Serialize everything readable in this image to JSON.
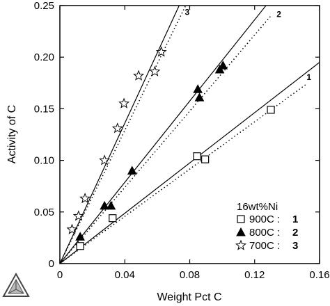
{
  "chart_data": {
    "type": "scatter",
    "xlabel": "Weight Pct C",
    "ylabel": "Activity of C",
    "xlim": [
      0,
      0.16
    ],
    "ylim": [
      0,
      0.25
    ],
    "x_ticks": [
      0,
      0.04,
      0.08,
      0.12,
      0.16
    ],
    "x_tick_labels": [
      "0",
      "0.04",
      "0.08",
      "0.12",
      "0.16"
    ],
    "y_ticks": [
      0,
      0.05,
      0.1,
      0.15,
      0.2,
      0.25
    ],
    "y_tick_labels": [
      "0",
      "0.05",
      "0.10",
      "0.15",
      "0.20",
      "0.25"
    ],
    "legend": {
      "title": "16wt%Ni",
      "placement": "bottom-right"
    },
    "series": [
      {
        "name": "900C",
        "number": "1",
        "marker": "open-square",
        "points": [
          {
            "x": 0.0125,
            "y": 0.017
          },
          {
            "x": 0.0325,
            "y": 0.044
          },
          {
            "x": 0.0845,
            "y": 0.104
          },
          {
            "x": 0.0895,
            "y": 0.101
          },
          {
            "x": 0.13,
            "y": 0.149
          }
        ],
        "solid_line": [
          [
            0,
            0
          ],
          [
            0.16,
            0.195
          ]
        ],
        "dotted_line": [
          [
            0,
            0
          ],
          [
            0.152,
            0.174
          ]
        ],
        "line_label": "1"
      },
      {
        "name": "800C",
        "number": "2",
        "marker": "filled-triangle",
        "points": [
          {
            "x": 0.0125,
            "y": 0.026
          },
          {
            "x": 0.0275,
            "y": 0.056
          },
          {
            "x": 0.0315,
            "y": 0.056
          },
          {
            "x": 0.0445,
            "y": 0.09
          },
          {
            "x": 0.085,
            "y": 0.169
          },
          {
            "x": 0.086,
            "y": 0.161
          },
          {
            "x": 0.0985,
            "y": 0.188
          },
          {
            "x": 0.1005,
            "y": 0.192
          }
        ],
        "solid_line": [
          [
            0,
            0
          ],
          [
            0.127,
            0.25
          ]
        ],
        "dotted_line": [
          [
            0,
            0
          ],
          [
            0.13,
            0.24
          ]
        ],
        "line_label": "2"
      },
      {
        "name": "700C",
        "number": "3",
        "marker": "open-star",
        "points": [
          {
            "x": 0.0075,
            "y": 0.033
          },
          {
            "x": 0.0115,
            "y": 0.046
          },
          {
            "x": 0.0155,
            "y": 0.063
          },
          {
            "x": 0.0275,
            "y": 0.1
          },
          {
            "x": 0.0355,
            "y": 0.131
          },
          {
            "x": 0.0395,
            "y": 0.155
          },
          {
            "x": 0.0485,
            "y": 0.182
          },
          {
            "x": 0.0585,
            "y": 0.186
          },
          {
            "x": 0.0625,
            "y": 0.205
          }
        ],
        "solid_line": [
          [
            0,
            0
          ],
          [
            0.0735,
            0.25
          ]
        ],
        "dotted_line": [
          [
            0,
            0
          ],
          [
            0.0775,
            0.25
          ]
        ],
        "line_label": "3"
      }
    ]
  }
}
